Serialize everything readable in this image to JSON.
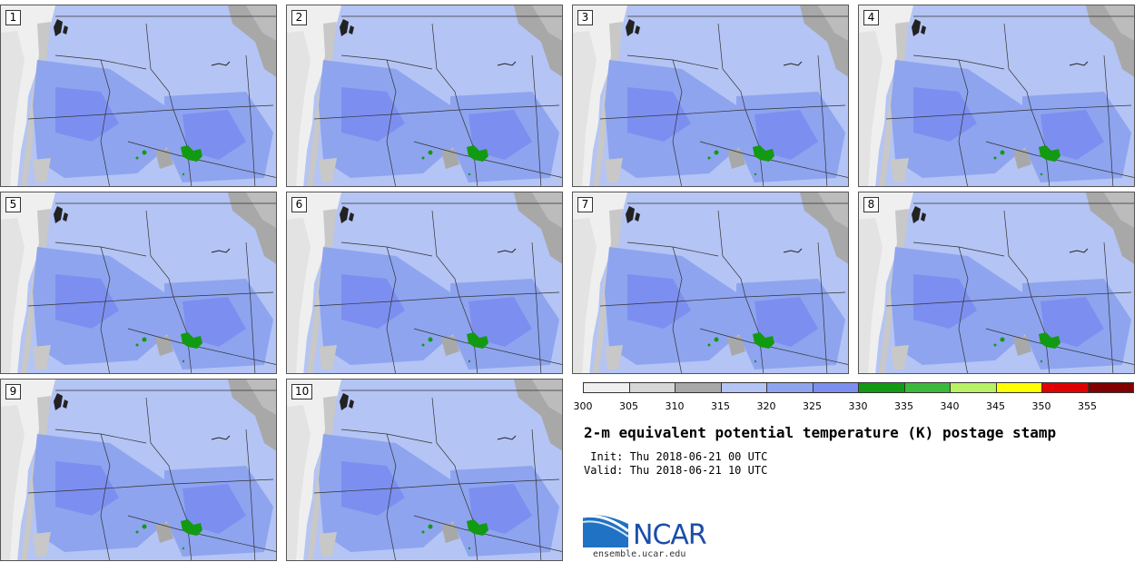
{
  "panels": [
    {
      "label": "1"
    },
    {
      "label": "2"
    },
    {
      "label": "3"
    },
    {
      "label": "4"
    },
    {
      "label": "5"
    },
    {
      "label": "6"
    },
    {
      "label": "7"
    },
    {
      "label": "8"
    },
    {
      "label": "9"
    },
    {
      "label": "10"
    }
  ],
  "colorbar": {
    "segments": [
      {
        "color": "#efefef"
      },
      {
        "color": "#d6d6d6"
      },
      {
        "color": "#a8a8a8"
      },
      {
        "color": "#b4c4f4"
      },
      {
        "color": "#8ea4ef"
      },
      {
        "color": "#7c8ff0"
      },
      {
        "color": "#129a12"
      },
      {
        "color": "#3cb93c"
      },
      {
        "color": "#b8f066"
      },
      {
        "color": "#ffff00"
      },
      {
        "color": "#e10000"
      },
      {
        "color": "#820000"
      }
    ],
    "ticks": [
      "300",
      "305",
      "310",
      "315",
      "320",
      "325",
      "330",
      "335",
      "340",
      "345",
      "350",
      "355"
    ]
  },
  "title": "2-m equivalent potential temperature (K) postage stamp",
  "init": " Init: Thu 2018-06-21 00 UTC",
  "valid": "Valid: Thu 2018-06-21 10 UTC",
  "logo": {
    "text": "NCAR",
    "url": "ensemble.ucar.edu"
  }
}
